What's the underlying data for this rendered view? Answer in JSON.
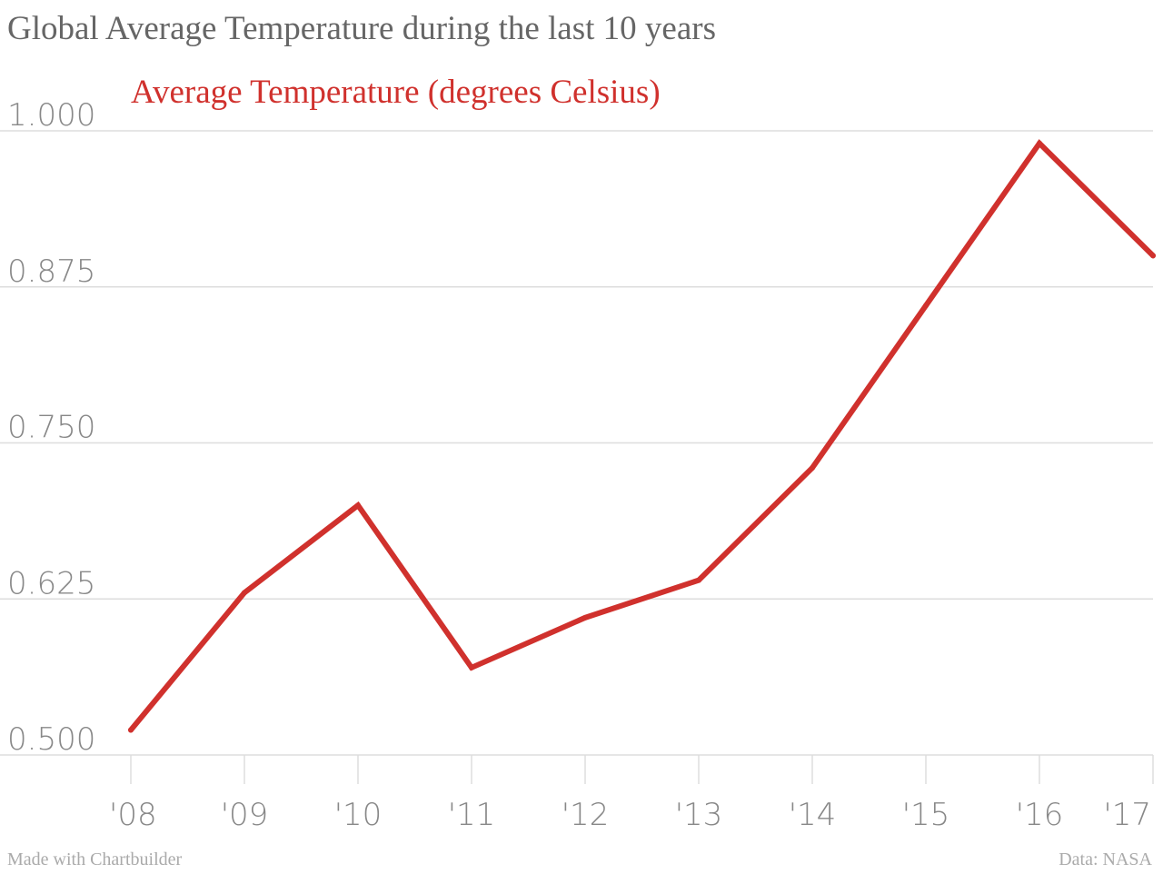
{
  "title": "Global Average Temperature during the last 10 years",
  "credit_left": "Made with Chartbuilder",
  "credit_right": "Data: NASA",
  "colors": {
    "series": "#d0312d",
    "grid": "#dddddd",
    "text": "#888888"
  },
  "chart_data": {
    "type": "line",
    "title": "Global Average Temperature during the last 10 years",
    "x": [
      "'08",
      "'09",
      "'10",
      "'11",
      "'12",
      "'13",
      "'14",
      "'15",
      "'16",
      "'17"
    ],
    "yticks": [
      "0.500",
      "0.625",
      "0.750",
      "0.875",
      "1.000"
    ],
    "ylim": [
      0.5,
      1.0
    ],
    "grid": true,
    "series": [
      {
        "name": "Average Temperature (degrees Celsius)",
        "values": [
          0.52,
          0.63,
          0.7,
          0.57,
          0.61,
          0.64,
          0.73,
          0.86,
          0.99,
          0.9
        ]
      }
    ]
  }
}
